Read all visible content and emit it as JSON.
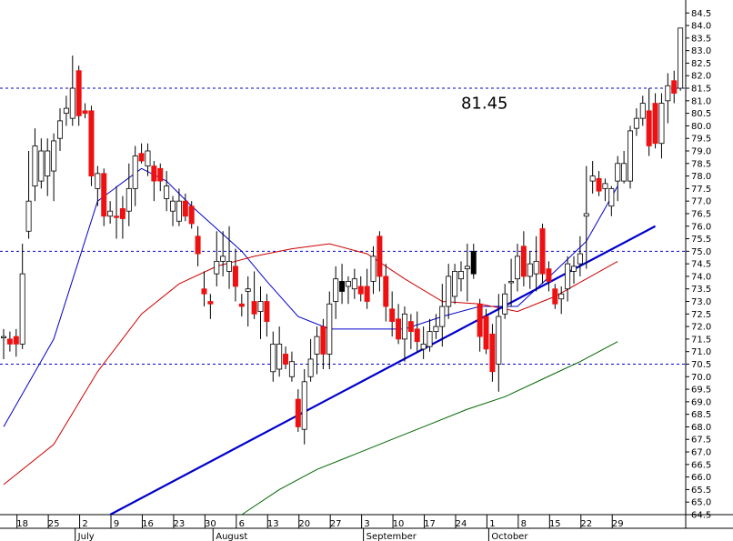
{
  "chart_data": {
    "type": "candlestick",
    "y_axis": {
      "side": "right",
      "ylim": [
        64.5,
        84.8
      ],
      "ticks": [
        64.5,
        65.0,
        65.5,
        66.0,
        66.5,
        67.0,
        67.5,
        68.0,
        68.5,
        69.0,
        69.5,
        70.0,
        70.5,
        71.0,
        71.5,
        72.0,
        72.5,
        73.0,
        73.5,
        74.0,
        74.5,
        75.0,
        75.5,
        76.0,
        76.5,
        77.0,
        77.5,
        78.0,
        78.5,
        79.0,
        79.5,
        80.0,
        80.5,
        81.0,
        81.5,
        82.0,
        82.5,
        83.0,
        83.5,
        84.0,
        84.5
      ],
      "tick_labels": [
        "64.5",
        "65.0",
        "65.5",
        "66.0",
        "66.5",
        "67.0",
        "67.5",
        "68.0",
        "68.5",
        "69.0",
        "69.5",
        "70.0",
        "70.5",
        "71.0",
        "71.5",
        "72.0",
        "72.5",
        "73.0",
        "73.5",
        "74.0",
        "74.5",
        "75.0",
        "75.5",
        "76.0",
        "76.5",
        "77.0",
        "77.5",
        "78.0",
        "78.5",
        "79.0",
        "79.5",
        "80.0",
        "80.5",
        "81.0",
        "81.5",
        "82.0",
        "82.5",
        "83.0",
        "83.5",
        "84.0",
        "84.5"
      ]
    },
    "x_axis": {
      "day_ticks": [
        {
          "label": "18",
          "i": 3
        },
        {
          "label": "25",
          "i": 8
        },
        {
          "label": "2",
          "i": 13
        },
        {
          "label": "9",
          "i": 18
        },
        {
          "label": "16",
          "i": 23
        },
        {
          "label": "23",
          "i": 28
        },
        {
          "label": "30",
          "i": 33
        },
        {
          "label": "6",
          "i": 38
        },
        {
          "label": "13",
          "i": 43
        },
        {
          "label": "20",
          "i": 48
        },
        {
          "label": "27",
          "i": 53
        },
        {
          "label": "3",
          "i": 58
        },
        {
          "label": "10",
          "i": 63
        },
        {
          "label": "17",
          "i": 68
        },
        {
          "label": "24",
          "i": 73
        },
        {
          "label": "1",
          "i": 78
        },
        {
          "label": "8",
          "i": 83
        },
        {
          "label": "15",
          "i": 88
        },
        {
          "label": "22",
          "i": 93
        },
        {
          "label": "29",
          "i": 98
        }
      ],
      "month_labels": [
        {
          "label": "July",
          "i": 12
        },
        {
          "label": "August",
          "i": 34
        },
        {
          "label": "September",
          "i": 58
        },
        {
          "label": "October",
          "i": 78
        }
      ]
    },
    "candles": [
      {
        "o": 71.6,
        "h": 71.9,
        "l": 70.7,
        "c": 71.6,
        "color": "white"
      },
      {
        "o": 71.5,
        "h": 71.8,
        "l": 71.0,
        "c": 71.3,
        "color": "red"
      },
      {
        "o": 71.6,
        "h": 71.9,
        "l": 70.8,
        "c": 71.3,
        "color": "red"
      },
      {
        "o": 71.3,
        "h": 75.3,
        "l": 71.1,
        "c": 74.1,
        "color": "white"
      },
      {
        "o": 75.8,
        "h": 79.0,
        "l": 75.5,
        "c": 77.0,
        "color": "white"
      },
      {
        "o": 77.6,
        "h": 79.9,
        "l": 77.0,
        "c": 79.2,
        "color": "white"
      },
      {
        "o": 77.8,
        "h": 79.5,
        "l": 77.5,
        "c": 79.0,
        "color": "white"
      },
      {
        "o": 78.0,
        "h": 79.5,
        "l": 77.2,
        "c": 79.0,
        "color": "white"
      },
      {
        "o": 78.2,
        "h": 79.7,
        "l": 77.0,
        "c": 79.4,
        "color": "white"
      },
      {
        "o": 79.5,
        "h": 80.7,
        "l": 79.0,
        "c": 80.2,
        "color": "white"
      },
      {
        "o": 80.5,
        "h": 81.2,
        "l": 80.0,
        "c": 80.7,
        "color": "white"
      },
      {
        "o": 80.3,
        "h": 82.8,
        "l": 80.0,
        "c": 81.5,
        "color": "white"
      },
      {
        "o": 82.2,
        "h": 82.4,
        "l": 80.0,
        "c": 80.4,
        "color": "red"
      },
      {
        "o": 80.6,
        "h": 80.9,
        "l": 80.3,
        "c": 80.5,
        "color": "red"
      },
      {
        "o": 80.6,
        "h": 80.8,
        "l": 77.6,
        "c": 78.0,
        "color": "red"
      },
      {
        "o": 77.5,
        "h": 78.4,
        "l": 76.8,
        "c": 78.1,
        "color": "white"
      },
      {
        "o": 78.1,
        "h": 78.3,
        "l": 76.0,
        "c": 76.4,
        "color": "red"
      },
      {
        "o": 76.4,
        "h": 77.0,
        "l": 76.1,
        "c": 76.6,
        "color": "white"
      },
      {
        "o": 76.4,
        "h": 77.6,
        "l": 75.5,
        "c": 76.4,
        "color": "red"
      },
      {
        "o": 76.7,
        "h": 77.2,
        "l": 75.5,
        "c": 76.3,
        "color": "red"
      },
      {
        "o": 76.6,
        "h": 78.5,
        "l": 76.0,
        "c": 77.5,
        "color": "white"
      },
      {
        "o": 77.5,
        "h": 79.2,
        "l": 76.8,
        "c": 78.8,
        "color": "white"
      },
      {
        "o": 78.9,
        "h": 79.3,
        "l": 78.5,
        "c": 78.6,
        "color": "red"
      },
      {
        "o": 78.4,
        "h": 79.3,
        "l": 78.0,
        "c": 79.0,
        "color": "white"
      },
      {
        "o": 78.4,
        "h": 78.6,
        "l": 77.0,
        "c": 77.8,
        "color": "red"
      },
      {
        "o": 78.3,
        "h": 78.5,
        "l": 77.4,
        "c": 77.8,
        "color": "red"
      },
      {
        "o": 77.6,
        "h": 78.2,
        "l": 76.6,
        "c": 77.1,
        "color": "white"
      },
      {
        "o": 76.6,
        "h": 77.2,
        "l": 76.0,
        "c": 77.0,
        "color": "white"
      },
      {
        "o": 77.0,
        "h": 77.5,
        "l": 76.0,
        "c": 76.2,
        "color": "white"
      },
      {
        "o": 77.0,
        "h": 77.3,
        "l": 76.2,
        "c": 76.4,
        "color": "red"
      },
      {
        "o": 76.8,
        "h": 77.0,
        "l": 75.9,
        "c": 76.1,
        "color": "red"
      },
      {
        "o": 75.6,
        "h": 76.0,
        "l": 74.4,
        "c": 74.9,
        "color": "red"
      },
      {
        "o": 73.5,
        "h": 74.2,
        "l": 72.8,
        "c": 73.3,
        "color": "red"
      },
      {
        "o": 73.0,
        "h": 73.3,
        "l": 72.3,
        "c": 72.9,
        "color": "red"
      },
      {
        "o": 74.1,
        "h": 75.8,
        "l": 73.6,
        "c": 74.6,
        "color": "white"
      },
      {
        "o": 74.6,
        "h": 75.8,
        "l": 74.0,
        "c": 74.8,
        "color": "white"
      },
      {
        "o": 74.2,
        "h": 76.0,
        "l": 73.5,
        "c": 74.6,
        "color": "white"
      },
      {
        "o": 74.4,
        "h": 75.1,
        "l": 73.0,
        "c": 73.6,
        "color": "red"
      },
      {
        "o": 72.9,
        "h": 73.3,
        "l": 72.4,
        "c": 72.8,
        "color": "red"
      },
      {
        "o": 73.5,
        "h": 74.0,
        "l": 72.0,
        "c": 73.4,
        "color": "white"
      },
      {
        "o": 73.0,
        "h": 74.2,
        "l": 72.3,
        "c": 72.5,
        "color": "red"
      },
      {
        "o": 72.6,
        "h": 73.6,
        "l": 71.5,
        "c": 73.0,
        "color": "white"
      },
      {
        "o": 73.0,
        "h": 73.3,
        "l": 71.6,
        "c": 72.2,
        "color": "red"
      },
      {
        "o": 71.3,
        "h": 71.8,
        "l": 69.8,
        "c": 70.2,
        "color": "white"
      },
      {
        "o": 70.3,
        "h": 72.0,
        "l": 70.0,
        "c": 71.3,
        "color": "white"
      },
      {
        "o": 70.9,
        "h": 71.2,
        "l": 70.3,
        "c": 70.5,
        "color": "red"
      },
      {
        "o": 70.6,
        "h": 71.0,
        "l": 69.8,
        "c": 70.0,
        "color": "white"
      },
      {
        "o": 69.1,
        "h": 69.5,
        "l": 67.8,
        "c": 68.0,
        "color": "red"
      },
      {
        "o": 67.9,
        "h": 70.3,
        "l": 67.3,
        "c": 69.8,
        "color": "white"
      },
      {
        "o": 70.0,
        "h": 71.5,
        "l": 69.8,
        "c": 70.7,
        "color": "white"
      },
      {
        "o": 70.9,
        "h": 72.0,
        "l": 70.1,
        "c": 71.6,
        "color": "white"
      },
      {
        "o": 72.0,
        "h": 72.3,
        "l": 70.3,
        "c": 70.9,
        "color": "red"
      },
      {
        "o": 70.9,
        "h": 73.4,
        "l": 70.3,
        "c": 72.9,
        "color": "white"
      },
      {
        "o": 73.0,
        "h": 74.4,
        "l": 72.3,
        "c": 73.9,
        "color": "white"
      },
      {
        "o": 73.8,
        "h": 74.5,
        "l": 72.9,
        "c": 73.4,
        "color": "black"
      },
      {
        "o": 73.6,
        "h": 74.0,
        "l": 72.9,
        "c": 73.8,
        "color": "white"
      },
      {
        "o": 73.5,
        "h": 74.3,
        "l": 73.1,
        "c": 73.9,
        "color": "white"
      },
      {
        "o": 73.3,
        "h": 74.0,
        "l": 73.0,
        "c": 73.6,
        "color": "red"
      },
      {
        "o": 73.6,
        "h": 74.3,
        "l": 72.7,
        "c": 73.0,
        "color": "red"
      },
      {
        "o": 73.8,
        "h": 75.2,
        "l": 73.3,
        "c": 74.8,
        "color": "white"
      },
      {
        "o": 75.6,
        "h": 75.8,
        "l": 73.4,
        "c": 74.0,
        "color": "red"
      },
      {
        "o": 74.0,
        "h": 74.5,
        "l": 72.2,
        "c": 72.8,
        "color": "red"
      },
      {
        "o": 72.7,
        "h": 73.4,
        "l": 71.6,
        "c": 72.2,
        "color": "red"
      },
      {
        "o": 72.3,
        "h": 72.9,
        "l": 71.3,
        "c": 71.5,
        "color": "red"
      },
      {
        "o": 71.5,
        "h": 72.8,
        "l": 70.6,
        "c": 72.5,
        "color": "white"
      },
      {
        "o": 72.2,
        "h": 72.5,
        "l": 71.1,
        "c": 71.8,
        "color": "red"
      },
      {
        "o": 71.9,
        "h": 72.6,
        "l": 71.0,
        "c": 71.4,
        "color": "red"
      },
      {
        "o": 71.1,
        "h": 72.0,
        "l": 70.7,
        "c": 71.3,
        "color": "white"
      },
      {
        "o": 71.2,
        "h": 72.3,
        "l": 71.0,
        "c": 71.8,
        "color": "white"
      },
      {
        "o": 71.8,
        "h": 72.5,
        "l": 71.5,
        "c": 72.0,
        "color": "white"
      },
      {
        "o": 72.0,
        "h": 73.7,
        "l": 71.2,
        "c": 72.8,
        "color": "white"
      },
      {
        "o": 72.8,
        "h": 74.5,
        "l": 72.3,
        "c": 74.0,
        "color": "white"
      },
      {
        "o": 73.2,
        "h": 74.5,
        "l": 72.9,
        "c": 74.2,
        "color": "white"
      },
      {
        "o": 73.9,
        "h": 74.6,
        "l": 73.4,
        "c": 74.2,
        "color": "white"
      },
      {
        "o": 74.4,
        "h": 75.3,
        "l": 73.0,
        "c": 74.3,
        "color": "white"
      },
      {
        "o": 74.1,
        "h": 75.3,
        "l": 73.9,
        "c": 75.0,
        "color": "black"
      },
      {
        "o": 72.9,
        "h": 73.1,
        "l": 71.0,
        "c": 71.6,
        "color": "red"
      },
      {
        "o": 72.4,
        "h": 72.7,
        "l": 70.9,
        "c": 71.1,
        "color": "red"
      },
      {
        "o": 71.7,
        "h": 72.1,
        "l": 69.8,
        "c": 70.2,
        "color": "red"
      },
      {
        "o": 70.5,
        "h": 73.3,
        "l": 69.4,
        "c": 72.4,
        "color": "white"
      },
      {
        "o": 72.5,
        "h": 73.7,
        "l": 72.3,
        "c": 73.3,
        "color": "white"
      },
      {
        "o": 73.8,
        "h": 74.7,
        "l": 72.8,
        "c": 73.8,
        "color": "white"
      },
      {
        "o": 73.9,
        "h": 75.3,
        "l": 73.4,
        "c": 74.8,
        "color": "white"
      },
      {
        "o": 75.2,
        "h": 75.8,
        "l": 73.6,
        "c": 74.0,
        "color": "red"
      },
      {
        "o": 74.0,
        "h": 75.0,
        "l": 73.5,
        "c": 74.5,
        "color": "white"
      },
      {
        "o": 74.6,
        "h": 75.6,
        "l": 73.4,
        "c": 74.1,
        "color": "white"
      },
      {
        "o": 75.9,
        "h": 76.1,
        "l": 73.7,
        "c": 74.1,
        "color": "red"
      },
      {
        "o": 74.3,
        "h": 74.6,
        "l": 73.4,
        "c": 73.8,
        "color": "red"
      },
      {
        "o": 73.5,
        "h": 73.7,
        "l": 72.7,
        "c": 72.9,
        "color": "red"
      },
      {
        "o": 73.1,
        "h": 73.6,
        "l": 72.5,
        "c": 73.3,
        "color": "white"
      },
      {
        "o": 73.5,
        "h": 74.8,
        "l": 73.0,
        "c": 74.5,
        "color": "white"
      },
      {
        "o": 74.4,
        "h": 74.8,
        "l": 73.7,
        "c": 74.2,
        "color": "white"
      },
      {
        "o": 74.5,
        "h": 75.6,
        "l": 74.0,
        "c": 74.9,
        "color": "white"
      },
      {
        "o": 76.4,
        "h": 78.4,
        "l": 74.3,
        "c": 76.5,
        "color": "white"
      },
      {
        "o": 78.0,
        "h": 78.6,
        "l": 77.3,
        "c": 77.8,
        "color": "white"
      },
      {
        "o": 77.9,
        "h": 78.2,
        "l": 77.2,
        "c": 77.4,
        "color": "red"
      },
      {
        "o": 77.7,
        "h": 77.9,
        "l": 77.0,
        "c": 77.5,
        "color": "white"
      },
      {
        "o": 76.8,
        "h": 77.6,
        "l": 76.4,
        "c": 77.5,
        "color": "white"
      },
      {
        "o": 77.8,
        "h": 78.8,
        "l": 77.0,
        "c": 78.5,
        "color": "white"
      },
      {
        "o": 78.5,
        "h": 79.0,
        "l": 77.7,
        "c": 77.8,
        "color": "white"
      },
      {
        "o": 77.8,
        "h": 80.0,
        "l": 77.5,
        "c": 79.8,
        "color": "white"
      },
      {
        "o": 79.9,
        "h": 80.7,
        "l": 79.6,
        "c": 80.3,
        "color": "white"
      },
      {
        "o": 80.3,
        "h": 81.2,
        "l": 80.0,
        "c": 80.9,
        "color": "white"
      },
      {
        "o": 80.6,
        "h": 81.5,
        "l": 78.8,
        "c": 79.2,
        "color": "red"
      },
      {
        "o": 80.9,
        "h": 81.3,
        "l": 79.1,
        "c": 79.3,
        "color": "red"
      },
      {
        "o": 79.3,
        "h": 81.3,
        "l": 78.7,
        "c": 80.9,
        "color": "white"
      },
      {
        "o": 81.0,
        "h": 82.1,
        "l": 80.1,
        "c": 81.6,
        "color": "white"
      },
      {
        "o": 81.8,
        "h": 82.2,
        "l": 80.9,
        "c": 81.3,
        "color": "red"
      },
      {
        "o": 81.5,
        "h": 83.9,
        "l": 81.4,
        "c": 83.9,
        "color": "white"
      }
    ],
    "moving_averages": [
      {
        "color": "#0000cc",
        "points": [
          [
            0,
            68.0
          ],
          [
            8,
            71.5
          ],
          [
            15,
            77.0
          ],
          [
            22,
            78.3
          ],
          [
            26,
            77.8
          ],
          [
            30,
            76.8
          ],
          [
            34,
            75.9
          ],
          [
            38,
            75.0
          ],
          [
            42,
            73.8
          ],
          [
            47,
            72.4
          ],
          [
            52,
            71.9
          ],
          [
            58,
            71.9
          ],
          [
            64,
            71.9
          ],
          [
            70,
            72.4
          ],
          [
            76,
            72.8
          ],
          [
            82,
            72.8
          ],
          [
            88,
            74.2
          ],
          [
            93,
            75.4
          ],
          [
            98,
            77.6
          ]
        ]
      },
      {
        "color": "#cc0000",
        "points": [
          [
            0,
            65.7
          ],
          [
            8,
            67.3
          ],
          [
            15,
            70.2
          ],
          [
            22,
            72.5
          ],
          [
            28,
            73.7
          ],
          [
            34,
            74.4
          ],
          [
            40,
            74.8
          ],
          [
            46,
            75.1
          ],
          [
            52,
            75.3
          ],
          [
            58,
            74.9
          ],
          [
            64,
            73.9
          ],
          [
            70,
            73.0
          ],
          [
            76,
            72.9
          ],
          [
            82,
            72.6
          ],
          [
            88,
            73.2
          ],
          [
            93,
            73.9
          ],
          [
            98,
            74.6
          ]
        ]
      },
      {
        "color": "#006600",
        "points": [
          [
            38,
            64.5
          ],
          [
            44,
            65.5
          ],
          [
            50,
            66.3
          ],
          [
            56,
            66.9
          ],
          [
            62,
            67.5
          ],
          [
            68,
            68.1
          ],
          [
            74,
            68.7
          ],
          [
            80,
            69.2
          ],
          [
            86,
            69.9
          ],
          [
            92,
            70.6
          ],
          [
            98,
            71.4
          ]
        ]
      }
    ],
    "trendline": {
      "color": "#0000cc",
      "from": [
        17,
        64.5
      ],
      "to": [
        104,
        76.0
      ]
    },
    "horizontal_lines": [
      81.5,
      75.0,
      70.5
    ],
    "annotations": [
      {
        "text": "81.45",
        "i": 73,
        "y": 80.9
      }
    ]
  }
}
